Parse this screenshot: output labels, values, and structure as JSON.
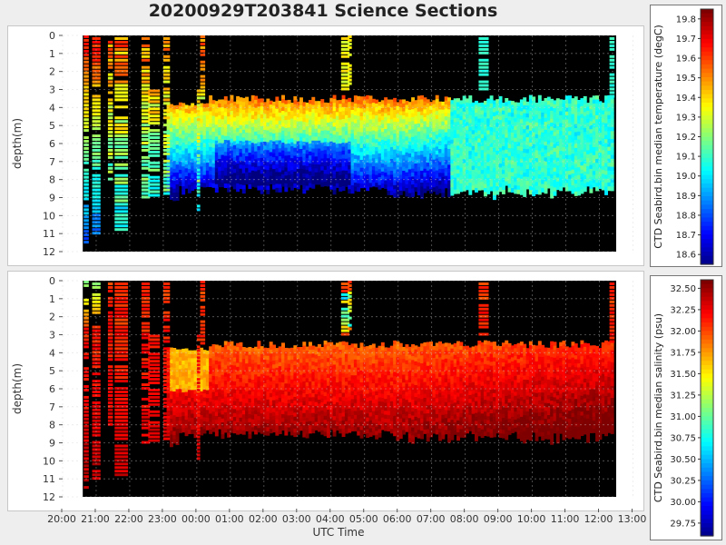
{
  "title": "20200929T203841 Science Sections",
  "colors": {
    "plot_background": "#000000",
    "panel_background": "#ffffff",
    "gridline": "#d0d0d0",
    "colormap": [
      "#00007f",
      "#0000ff",
      "#007fff",
      "#00ffff",
      "#7fff7f",
      "#ffff00",
      "#ff7f00",
      "#ff0000",
      "#7f0000"
    ]
  },
  "chart_data": [
    {
      "type": "heatmap",
      "panel": "temperature",
      "ylabel": "depth(m)",
      "xlabel": "UTC Time",
      "y_ticks": [
        "0",
        "1",
        "2",
        "3",
        "4",
        "5",
        "6",
        "7",
        "8",
        "9",
        "10",
        "11",
        "12"
      ],
      "ylim": [
        12,
        0
      ],
      "x_ticks": [
        "20:00",
        "21:00",
        "22:00",
        "23:00",
        "00:00",
        "01:00",
        "02:00",
        "03:00",
        "04:00",
        "05:00",
        "06:00",
        "07:00",
        "08:00",
        "09:00",
        "10:00",
        "11:00",
        "12:00",
        "13:00"
      ],
      "x_data_range_hours": [
        20.6,
        36.5
      ],
      "colorbar_label": "CTD Seabird.bin median temperature (degC)",
      "colorbar_ticks": [
        "19.8",
        "19.7",
        "19.6",
        "19.5",
        "19.4",
        "19.3",
        "19.2",
        "19.1",
        "19.0",
        "18.9",
        "18.8",
        "18.7",
        "18.6"
      ],
      "colorbar_range": [
        18.55,
        19.85
      ],
      "grid": true
    },
    {
      "type": "heatmap",
      "panel": "salinity",
      "ylabel": "depth(m)",
      "xlabel": "UTC Time",
      "y_ticks": [
        "0",
        "1",
        "2",
        "3",
        "4",
        "5",
        "6",
        "7",
        "8",
        "9",
        "10",
        "11",
        "12"
      ],
      "ylim": [
        12,
        0
      ],
      "x_ticks": [
        "20:00",
        "21:00",
        "22:00",
        "23:00",
        "00:00",
        "01:00",
        "02:00",
        "03:00",
        "04:00",
        "05:00",
        "06:00",
        "07:00",
        "08:00",
        "09:00",
        "10:00",
        "11:00",
        "12:00",
        "13:00"
      ],
      "x_data_range_hours": [
        20.6,
        36.5
      ],
      "colorbar_label": "CTD Seabird.bin median salinity (psu)",
      "colorbar_ticks": [
        "32.50",
        "32.25",
        "32.00",
        "31.75",
        "31.50",
        "31.25",
        "31.00",
        "30.75",
        "30.50",
        "30.25",
        "30.00",
        "29.75"
      ],
      "colorbar_range": [
        29.6,
        32.6
      ],
      "grid": true
    }
  ]
}
